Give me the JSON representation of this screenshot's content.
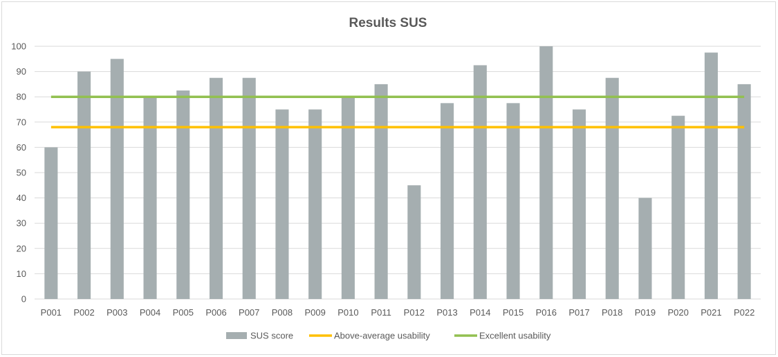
{
  "chart_data": {
    "type": "bar",
    "title": "Results SUS",
    "xlabel": "",
    "ylabel": "",
    "categories": [
      "P001",
      "P002",
      "P003",
      "P004",
      "P005",
      "P006",
      "P007",
      "P008",
      "P009",
      "P010",
      "P011",
      "P012",
      "P013",
      "P014",
      "P015",
      "P016",
      "P017",
      "P018",
      "P019",
      "P020",
      "P021",
      "P022"
    ],
    "series": [
      {
        "name": "SUS score",
        "kind": "bar",
        "color": "#a5aeb0",
        "values": [
          60,
          90,
          95,
          80,
          82.5,
          87.5,
          87.5,
          75,
          75,
          80,
          85,
          45,
          77.5,
          92.5,
          77.5,
          100,
          75,
          87.5,
          40,
          72.5,
          97.5,
          85
        ]
      },
      {
        "name": "Above-average usability",
        "kind": "line",
        "color": "#ffc000",
        "values": [
          68,
          68,
          68,
          68,
          68,
          68,
          68,
          68,
          68,
          68,
          68,
          68,
          68,
          68,
          68,
          68,
          68,
          68,
          68,
          68,
          68,
          68
        ]
      },
      {
        "name": "Excellent usability",
        "kind": "line",
        "color": "#92c050",
        "values": [
          80,
          80,
          80,
          80,
          80,
          80,
          80,
          80,
          80,
          80,
          80,
          80,
          80,
          80,
          80,
          80,
          80,
          80,
          80,
          80,
          80,
          80
        ]
      }
    ],
    "ylim": [
      0,
      100
    ],
    "yticks": [
      "0",
      "10",
      "20",
      "30",
      "40",
      "50",
      "60",
      "70",
      "80",
      "90",
      "100"
    ],
    "grid": true,
    "legend_position": "bottom"
  }
}
